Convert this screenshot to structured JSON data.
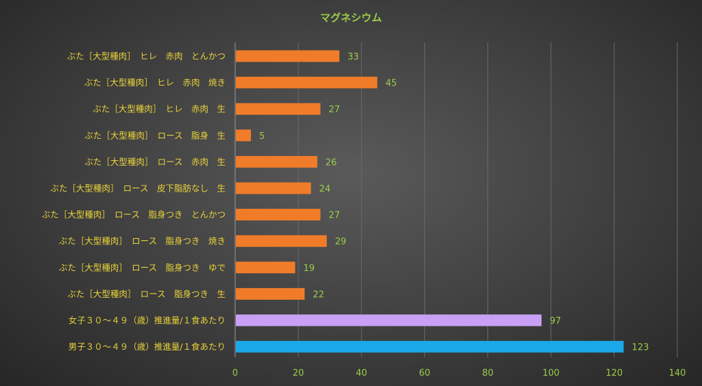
{
  "chart_data": {
    "type": "bar",
    "orientation": "horizontal",
    "title": "マグネシウム",
    "xlabel": "",
    "ylabel": "",
    "xlim": [
      0,
      140
    ],
    "ticks": [
      0,
      20,
      40,
      60,
      80,
      100,
      120,
      140
    ],
    "grid": true,
    "categories": [
      "ぶた［大型種肉］　ヒレ　赤肉　とんかつ",
      "ぶた［大型種肉］　ヒレ　赤肉　焼き",
      "ぶた［大型種肉］　ヒレ　赤肉　生",
      "ぶた［大型種肉］　ロース　脂身　生",
      "ぶた［大型種肉］　ロース　赤肉　生",
      "ぶた［大型種肉］　ロース　皮下脂肪なし　生",
      "ぶた［大型種肉］　ロース　脂身つき　とんかつ",
      "ぶた［大型種肉］　ロース　脂身つき　焼き",
      "ぶた［大型種肉］　ロース　脂身つき　ゆで",
      "ぶた［大型種肉］　ロース　脂身つき　生",
      "女子３０～４９（歳）推進量/１食あたり",
      "男子３０～４９（歳）推進量/１食あたり"
    ],
    "values": [
      33,
      45,
      27,
      5,
      26,
      24,
      27,
      29,
      19,
      22,
      97,
      123
    ],
    "bar_colors": [
      "#f07c2a",
      "#f07c2a",
      "#f07c2a",
      "#f07c2a",
      "#f07c2a",
      "#f07c2a",
      "#f07c2a",
      "#f07c2a",
      "#f07c2a",
      "#f07c2a",
      "#c9a0f5",
      "#1aa8e8"
    ]
  }
}
